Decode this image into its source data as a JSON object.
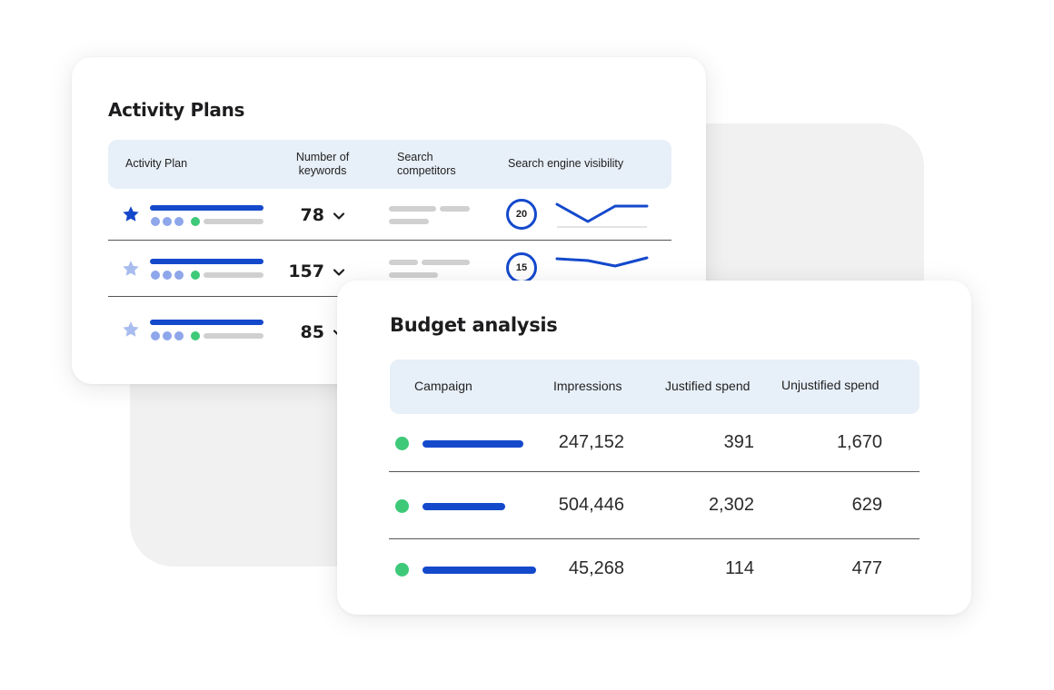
{
  "activity_plans": {
    "title": "Activity Plans",
    "columns": {
      "plan": "Activity Plan",
      "keywords_line1": "Number of",
      "keywords_line2": "keywords",
      "competitors_line1": "Search",
      "competitors_line2": "competitors",
      "visibility": "Search engine visibility"
    },
    "rows": [
      {
        "starred": true,
        "keywords": "78",
        "visibility": "20"
      },
      {
        "starred": false,
        "keywords": "157",
        "visibility": "15"
      },
      {
        "starred": false,
        "keywords": "85"
      }
    ]
  },
  "budget_analysis": {
    "title": "Budget analysis",
    "columns": {
      "campaign": "Campaign",
      "impressions": "Impressions",
      "justified": "Justified spend",
      "unjustified": "Unjustified spend"
    },
    "rows": [
      {
        "impressions": "247,152",
        "justified": "391",
        "unjustified": "1,670"
      },
      {
        "impressions": "504,446",
        "justified": "2,302",
        "unjustified": "629"
      },
      {
        "impressions": "45,268",
        "justified": "114",
        "unjustified": "477"
      }
    ]
  },
  "colors": {
    "accent_blue": "#1449cc",
    "light_blue": "#8ea6ea",
    "status_green": "#3ec979",
    "header_bg": "#e7eff8",
    "placeholder_gray": "#d0d0d0"
  },
  "icons": {
    "star_filled": "star-filled-icon",
    "star_outline": "star-icon",
    "chevron": "chevron-down-icon",
    "status": "status-dot-icon"
  }
}
